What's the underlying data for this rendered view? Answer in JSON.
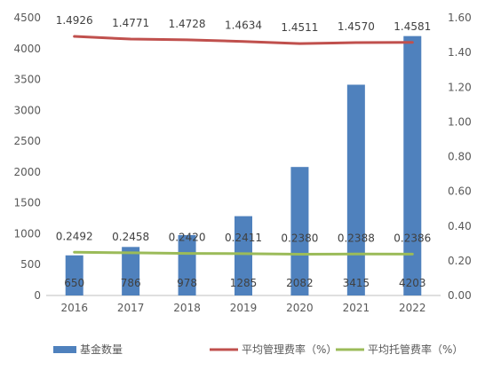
{
  "chart_data": {
    "type": "bar",
    "categories": [
      "2016",
      "2017",
      "2018",
      "2019",
      "2020",
      "2021",
      "2022"
    ],
    "series": [
      {
        "name": "基金数量",
        "type": "bar",
        "axis": "left",
        "color": "#4F81BD",
        "values": [
          650,
          786,
          978,
          1285,
          2082,
          3415,
          4203
        ],
        "labels": [
          "650",
          "786",
          "978",
          "1285",
          "2082",
          "3415",
          "4203"
        ]
      },
      {
        "name": "平均管理费率（%）",
        "type": "line",
        "axis": "right",
        "color": "#C0504D",
        "values": [
          1.4926,
          1.4771,
          1.4728,
          1.4634,
          1.4511,
          1.457,
          1.4581
        ],
        "labels": [
          "1.4926",
          "1.4771",
          "1.4728",
          "1.4634",
          "1.4511",
          "1.4570",
          "1.4581"
        ]
      },
      {
        "name": "平均托管费率（%）",
        "type": "line",
        "axis": "right",
        "color": "#9BBB59",
        "values": [
          0.2492,
          0.2458,
          0.242,
          0.2411,
          0.238,
          0.2388,
          0.2386
        ],
        "labels": [
          "0.2492",
          "0.2458",
          "0.2420",
          "0.2411",
          "0.2380",
          "0.2388",
          "0.2386"
        ]
      }
    ],
    "y_left": {
      "ylim": [
        0,
        4500
      ],
      "ticks": [
        "0",
        "500",
        "1000",
        "1500",
        "2000",
        "2500",
        "3000",
        "3500",
        "4000",
        "4500"
      ]
    },
    "y_right": {
      "ylim": [
        0,
        1.6
      ],
      "ticks": [
        "0.00",
        "0.20",
        "0.40",
        "0.60",
        "0.80",
        "1.00",
        "1.20",
        "1.40",
        "1.60"
      ]
    },
    "grid": false,
    "legend_position": "bottom"
  }
}
